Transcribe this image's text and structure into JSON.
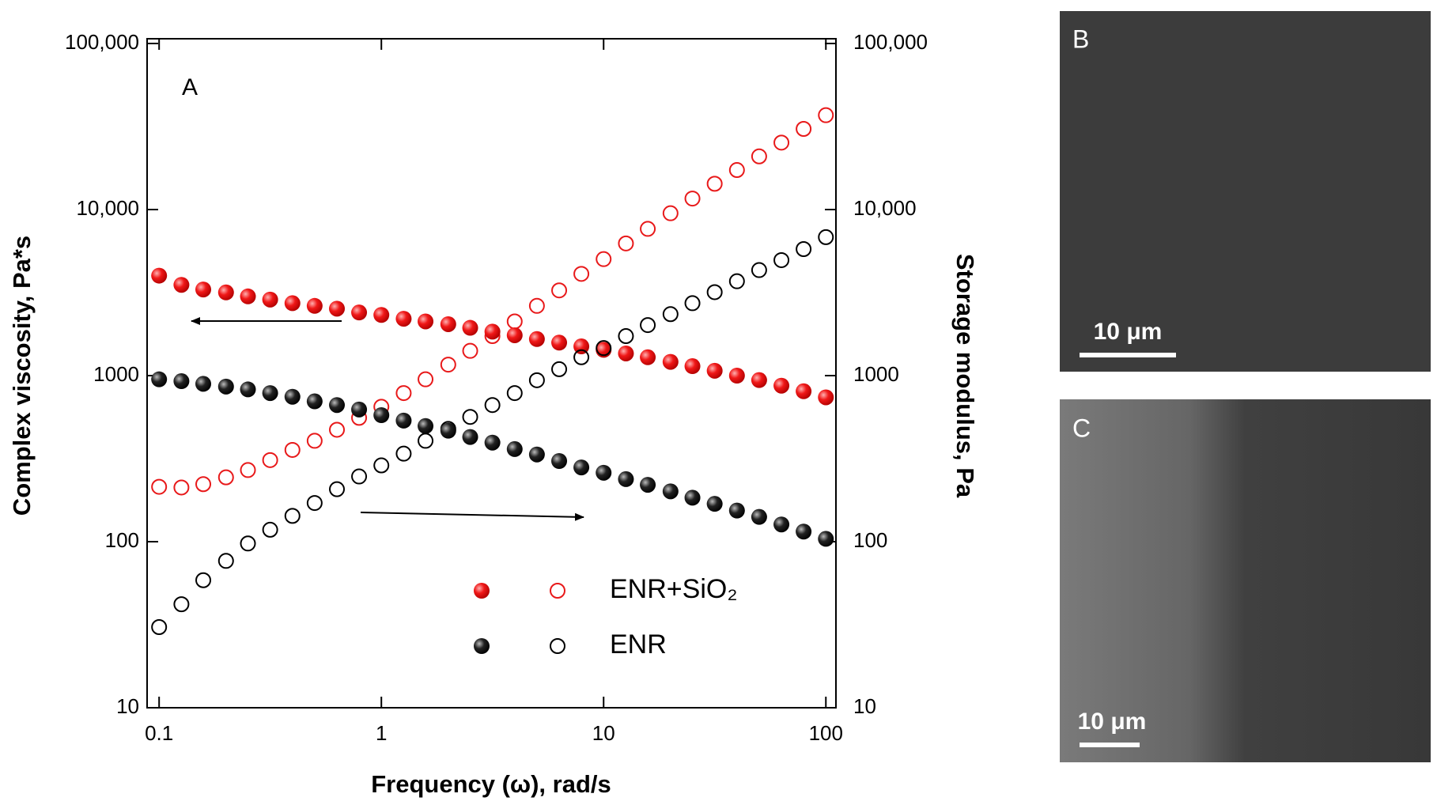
{
  "chart_data": {
    "type": "scatter",
    "x_label": "Frequency (ω), rad/s",
    "y_label": "Complex viscosity, Pa*s",
    "y2_label": "Storage modulus, Pa",
    "annotation": "A",
    "x": [
      0.1,
      0.126,
      0.158,
      0.2,
      0.251,
      0.316,
      0.398,
      0.501,
      0.631,
      0.794,
      1,
      1.26,
      1.58,
      2,
      2.51,
      3.16,
      3.98,
      5.01,
      6.31,
      7.94,
      10,
      12.6,
      15.8,
      20,
      25.1,
      31.6,
      39.8,
      50.1,
      63.1,
      79.4,
      100
    ],
    "series": [
      {
        "name": "ENR+SiO₂",
        "color": "#e8191a",
        "values": [
          4000,
          3520,
          3300,
          3170,
          3000,
          2870,
          2730,
          2630,
          2530,
          2400,
          2320,
          2200,
          2120,
          2040,
          1940,
          1840,
          1750,
          1660,
          1580,
          1500,
          1430,
          1360,
          1290,
          1210,
          1140,
          1070,
          1000,
          940,
          870,
          805,
          740
        ],
        "y2_values": [
          214,
          212,
          222,
          244,
          270,
          310,
          357,
          405,
          472,
          557,
          649,
          785,
          950,
          1165,
          1410,
          1730,
          2120,
          2630,
          3260,
          4100,
          5030,
          6250,
          7650,
          9500,
          11650,
          14300,
          17300,
          20900,
          25300,
          30600,
          37000
        ]
      },
      {
        "name": "ENR",
        "color": "#000000",
        "values": [
          950,
          926,
          892,
          859,
          826,
          785,
          746,
          700,
          665,
          625,
          578,
          536,
          497,
          466,
          427,
          395,
          361,
          335,
          306,
          280,
          260,
          238,
          220,
          201,
          184,
          169,
          154,
          141,
          127,
          115,
          104
        ],
        "y2_values": [
          30.6,
          42,
          58.6,
          76.6,
          97.5,
          118,
          143,
          171,
          207,
          247,
          288,
          339,
          405,
          478,
          564,
          665,
          785,
          938,
          1093,
          1290,
          1465,
          1730,
          2015,
          2345,
          2730,
          3180,
          3700,
          4320,
          4960,
          5780,
          6820
        ]
      }
    ],
    "x_log": true,
    "y_log": true,
    "xlim": [
      0.0883,
      111
    ],
    "xticks": [
      0.1,
      1,
      10,
      100
    ],
    "ylim": [
      10,
      100000
    ],
    "yticks": [
      10,
      100,
      1000,
      {
        "value": 10000,
        "label": "10,000"
      },
      {
        "value": 100000,
        "label": "100,000"
      }
    ],
    "y2lim": [
      10,
      100000
    ],
    "y2ticks": [
      10,
      100,
      1000,
      {
        "value": 10000,
        "label": "10,000"
      },
      {
        "value": 100000,
        "label": "100,000"
      }
    ]
  },
  "panels": [
    {
      "label": "B",
      "scale_bar": "10 μm"
    },
    {
      "label": "C",
      "scale_bar": "10 μm"
    }
  ]
}
